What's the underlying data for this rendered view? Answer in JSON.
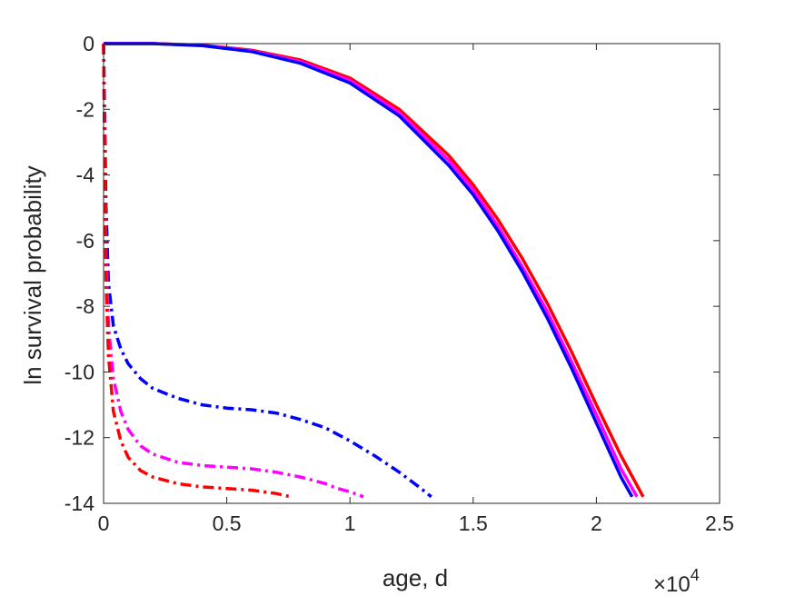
{
  "chart_data": {
    "type": "line",
    "xlabel": "age, d",
    "ylabel": "ln survival probability",
    "x_multiplier_label": "×10",
    "x_multiplier_exp": "4",
    "xlim": [
      0,
      25000
    ],
    "ylim": [
      -14,
      0
    ],
    "x_ticks": [
      0,
      5000,
      10000,
      15000,
      20000,
      25000
    ],
    "x_tick_labels": [
      "0",
      "0.5",
      "1",
      "1.5",
      "2",
      "2.5"
    ],
    "y_ticks": [
      0,
      -2,
      -4,
      -6,
      -8,
      -10,
      -12,
      -14
    ],
    "y_tick_labels": [
      "0",
      "-2",
      "-4",
      "-6",
      "-8",
      "-10",
      "-12",
      "-14"
    ],
    "grid": false,
    "legend": "none",
    "series": [
      {
        "color": "#ff0000",
        "style": "solid",
        "x": [
          0,
          2000,
          4000,
          6000,
          8000,
          10000,
          12000,
          14000,
          15000,
          16000,
          17000,
          18000,
          19000,
          20000,
          21000,
          21900
        ],
        "y": [
          0,
          0,
          -0.05,
          -0.2,
          -0.5,
          -1.05,
          -2.0,
          -3.4,
          -4.3,
          -5.35,
          -6.55,
          -7.9,
          -9.4,
          -11.0,
          -12.55,
          -13.8
        ]
      },
      {
        "color": "#ff00ff",
        "style": "solid",
        "x": [
          0,
          2000,
          4000,
          6000,
          8000,
          10000,
          12000,
          14000,
          15000,
          16000,
          17000,
          18000,
          19000,
          20000,
          21000,
          21650
        ],
        "y": [
          0,
          0,
          -0.05,
          -0.22,
          -0.55,
          -1.12,
          -2.1,
          -3.55,
          -4.45,
          -5.55,
          -6.8,
          -8.15,
          -9.7,
          -11.3,
          -12.95,
          -13.8
        ]
      },
      {
        "color": "#0000ff",
        "style": "solid",
        "x": [
          0,
          2000,
          4000,
          6000,
          8000,
          10000,
          12000,
          14000,
          15000,
          16000,
          17000,
          18000,
          19000,
          20000,
          21000,
          21450
        ],
        "y": [
          0,
          0,
          -0.06,
          -0.24,
          -0.6,
          -1.2,
          -2.2,
          -3.7,
          -4.6,
          -5.7,
          -6.95,
          -8.35,
          -9.9,
          -11.55,
          -13.2,
          -13.8
        ]
      },
      {
        "color": "#0000ff",
        "style": "dashdot",
        "x": [
          0,
          50,
          100,
          200,
          400,
          700,
          1000,
          1500,
          2000,
          3000,
          4000,
          5000,
          6000,
          7000,
          8000,
          9000,
          10000,
          11000,
          12000,
          12800,
          13300
        ],
        "y": [
          0,
          -2.5,
          -5.0,
          -7.3,
          -8.6,
          -9.3,
          -9.75,
          -10.2,
          -10.5,
          -10.8,
          -11.0,
          -11.1,
          -11.15,
          -11.25,
          -11.45,
          -11.7,
          -12.1,
          -12.55,
          -13.05,
          -13.5,
          -13.8
        ]
      },
      {
        "color": "#ff00ff",
        "style": "dashdot",
        "x": [
          0,
          50,
          100,
          200,
          400,
          700,
          1000,
          1500,
          2000,
          3000,
          4000,
          5000,
          6000,
          7000,
          8000,
          9000,
          9500,
          10000,
          10550
        ],
        "y": [
          0,
          -3.5,
          -6.5,
          -8.6,
          -10.2,
          -11.2,
          -11.75,
          -12.25,
          -12.5,
          -12.75,
          -12.85,
          -12.9,
          -12.95,
          -13.05,
          -13.2,
          -13.4,
          -13.55,
          -13.65,
          -13.8
        ]
      },
      {
        "color": "#ff0000",
        "style": "dashdot",
        "x": [
          0,
          50,
          100,
          200,
          400,
          700,
          1000,
          1500,
          2000,
          3000,
          4000,
          5000,
          6000,
          7000,
          7600
        ],
        "y": [
          0,
          -4.0,
          -7.3,
          -9.5,
          -11.2,
          -12.1,
          -12.6,
          -13.0,
          -13.2,
          -13.4,
          -13.5,
          -13.55,
          -13.6,
          -13.7,
          -13.8
        ]
      }
    ]
  }
}
